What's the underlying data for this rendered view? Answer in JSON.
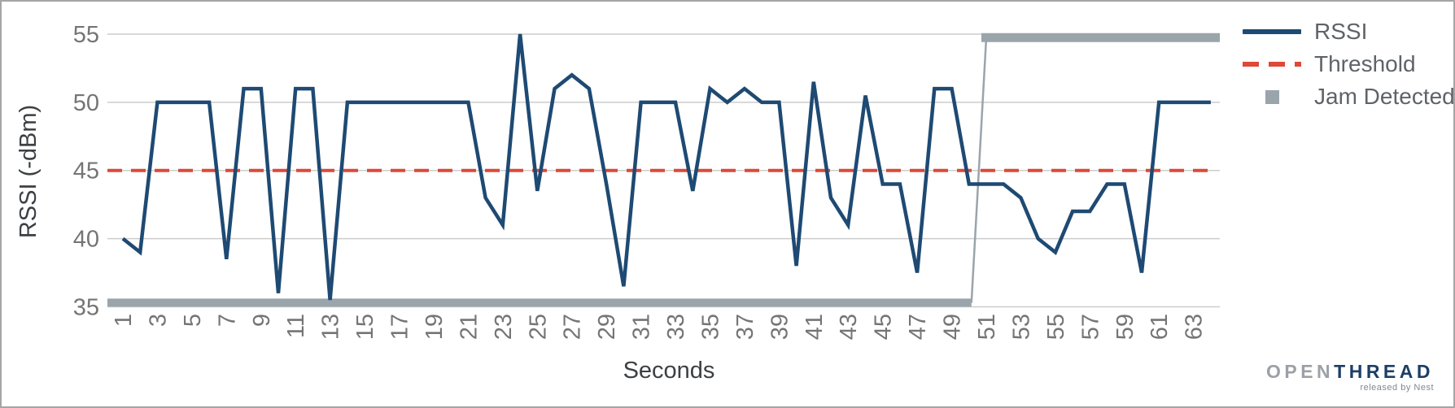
{
  "chart_data": {
    "type": "line",
    "title": "",
    "xlabel": "Seconds",
    "ylabel": "RSSI (-dBm)",
    "x_range": [
      1,
      64
    ],
    "ylim": [
      35,
      55
    ],
    "grid": true,
    "legend_position": "right",
    "y_ticks": [
      55,
      50,
      45,
      40,
      35
    ],
    "x_ticks": [
      1,
      3,
      5,
      7,
      9,
      11,
      13,
      15,
      17,
      19,
      21,
      23,
      25,
      27,
      29,
      31,
      33,
      35,
      37,
      39,
      41,
      43,
      45,
      47,
      49,
      51,
      53,
      55,
      57,
      59,
      61,
      63
    ],
    "series": [
      {
        "name": "RSSI",
        "type": "line",
        "color": "#1e4a73",
        "x_start": 1,
        "values": [
          40,
          39,
          50,
          50,
          50,
          50,
          38.5,
          51,
          51,
          36,
          51,
          51,
          35.5,
          50,
          50,
          50,
          50,
          50,
          50,
          50,
          50,
          43,
          41,
          55,
          43.5,
          51,
          52,
          51,
          44,
          36.5,
          50,
          50,
          50,
          43.5,
          51,
          50,
          51,
          50,
          50,
          38,
          51.5,
          43,
          41,
          50.5,
          44,
          44,
          37.5,
          51,
          51,
          44,
          44,
          44,
          43,
          40,
          39,
          42,
          42,
          44,
          44,
          37.5,
          50,
          50,
          50,
          50
        ]
      },
      {
        "name": "Threshold",
        "type": "hline",
        "color": "#dc4a38",
        "value": 45,
        "dash": [
          18,
          11
        ]
      },
      {
        "name": "Jam Detected",
        "type": "step",
        "color": "#9aa4ab",
        "segments": [
          {
            "x_from": 1,
            "x_to": 50,
            "value": 35.3,
            "extend_left_to_edge": true
          },
          {
            "x_from": 51,
            "x_to": 64,
            "value": 54.75,
            "extend_right_to_edge": true
          }
        ]
      }
    ],
    "colors": {
      "gridline": "#cccccc",
      "tick_text": "#757575",
      "axis_title_text": "#3c4043"
    }
  },
  "legend": {
    "items": [
      {
        "label": "RSSI",
        "swatch": "line"
      },
      {
        "label": "Threshold",
        "swatch": "dashed-line"
      },
      {
        "label": "Jam Detected",
        "swatch": "square"
      }
    ]
  },
  "logo": {
    "brand_gray": "OPEN",
    "brand_navy": "THREAD",
    "tagline": "released by Nest"
  }
}
